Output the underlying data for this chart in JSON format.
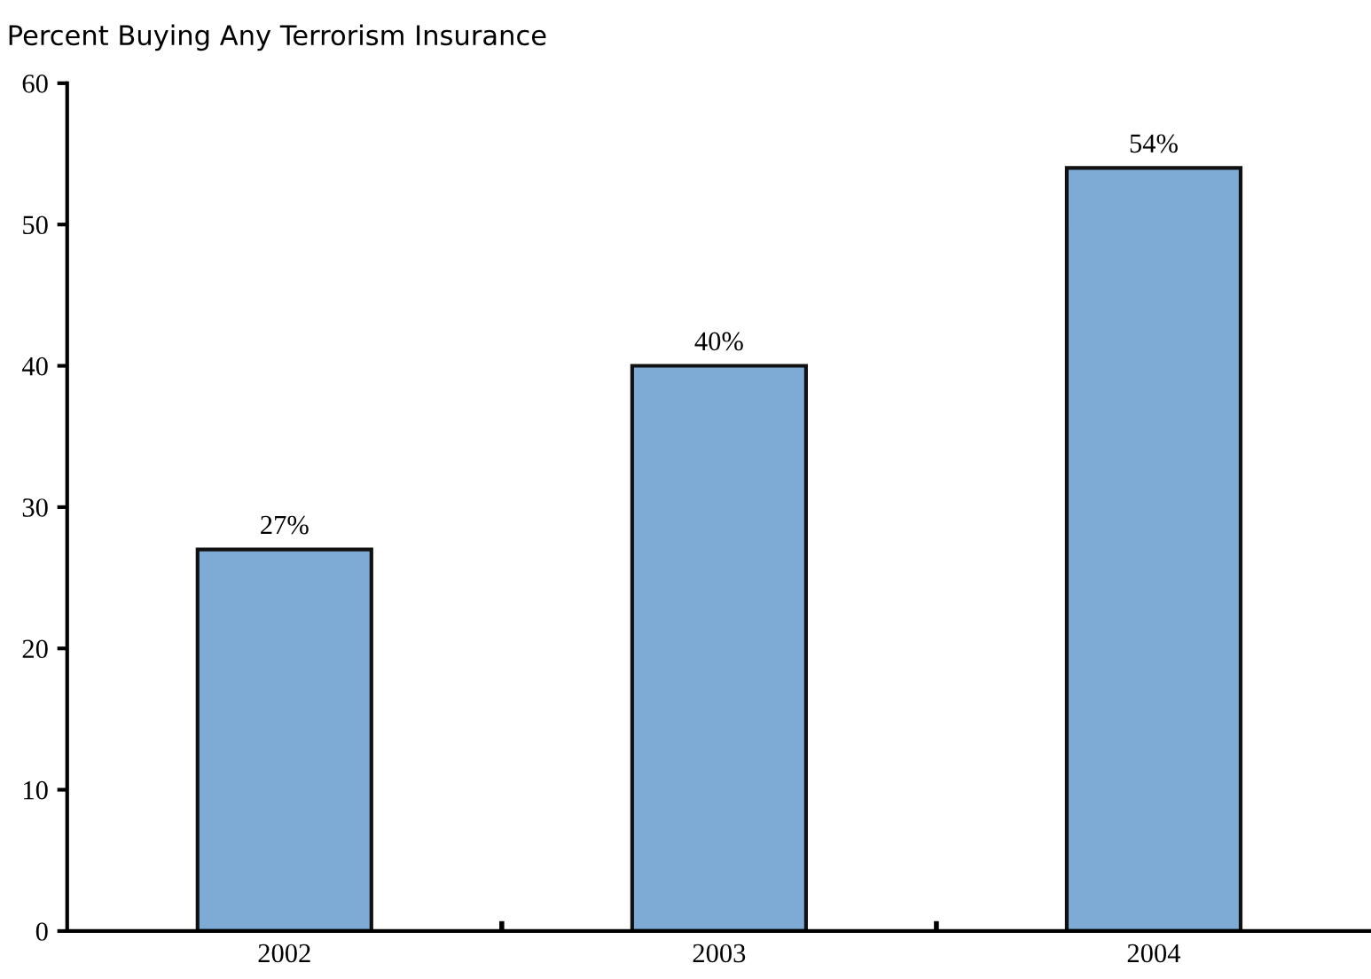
{
  "chart_data": {
    "type": "bar",
    "title": "Percent Buying Any Terrorism Insurance",
    "categories": [
      "2002",
      "2003",
      "2004"
    ],
    "values": [
      27,
      40,
      54
    ],
    "value_labels": [
      "27%",
      "40%",
      "54%"
    ],
    "color": "#7eabd5",
    "ylim": [
      0,
      60
    ],
    "yticks": [
      0,
      10,
      20,
      30,
      40,
      50,
      60
    ],
    "grid": false,
    "legend": false
  }
}
